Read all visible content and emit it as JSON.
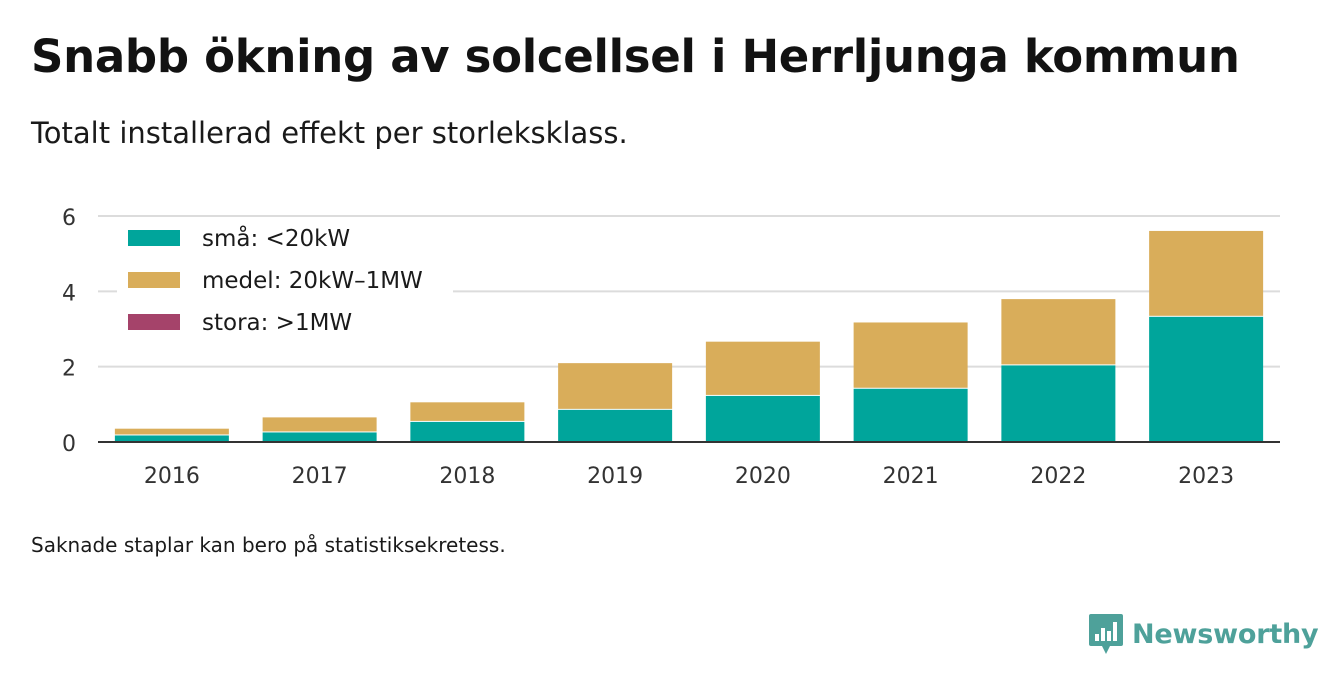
{
  "title": "Snabb ökning av solcellsel i Herrljunga kommun",
  "subtitle": "Totalt installerad effekt per storleksklass.",
  "footnote": "Saknade staplar kan bero på statistiksekretess.",
  "brand": {
    "name": "Newsworthy",
    "icon": "newsworthy-logo-icon",
    "color": "#4ea19a"
  },
  "chart_data": {
    "type": "bar",
    "stacked": true,
    "categories": [
      "2016",
      "2017",
      "2018",
      "2019",
      "2020",
      "2021",
      "2022",
      "2023"
    ],
    "series": [
      {
        "name": "små: <20kW",
        "color": "#00a59b",
        "values": [
          0.2,
          0.28,
          0.56,
          0.88,
          1.25,
          1.44,
          2.06,
          3.35
        ]
      },
      {
        "name": "medel: 20kW–1MW",
        "color": "#d9ad5a",
        "values": [
          0.18,
          0.4,
          0.52,
          1.24,
          1.44,
          1.76,
          1.76,
          2.28
        ]
      },
      {
        "name": "stora: >1MW",
        "color": "#a5436a",
        "values": [
          0,
          0,
          0,
          0,
          0,
          0,
          0,
          0
        ]
      }
    ],
    "ylim": [
      0,
      6
    ],
    "yticks": [
      0,
      2,
      4,
      6
    ],
    "xlabel": "",
    "ylabel": "",
    "grid": true,
    "legend_position": "top-left"
  }
}
